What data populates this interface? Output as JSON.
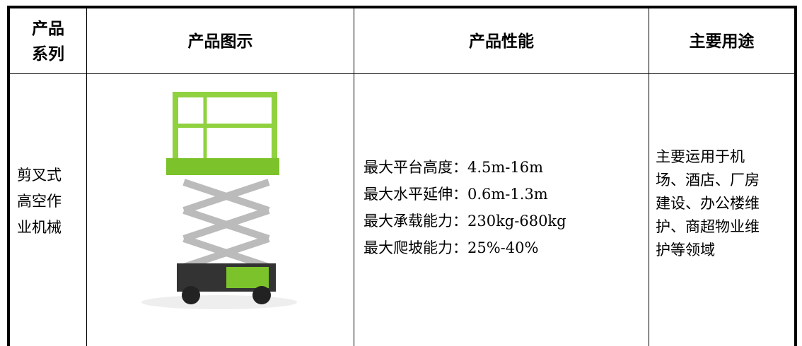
{
  "table": {
    "header": [
      [
        "产品",
        "系列"
      ],
      [
        "产品图示"
      ],
      [
        "产品性能"
      ],
      [
        "主要用途"
      ]
    ],
    "rows": [
      {
        "series": [
          "剪叉式",
          "高空作",
          "业机械"
        ],
        "performance": [
          "最大平台高度：4.5m-16m",
          "最大水平延伸：0.6m-1.3m",
          "最大承载能力：230kg-680kg",
          "最大爬坡能力：25%-40%"
        ],
        "usage": [
          "主要运用于机",
          "场、酒店、厂房",
          "建设、办公楼维",
          "护、商超物业维",
          "护等领域"
        ]
      }
    ]
  }
}
